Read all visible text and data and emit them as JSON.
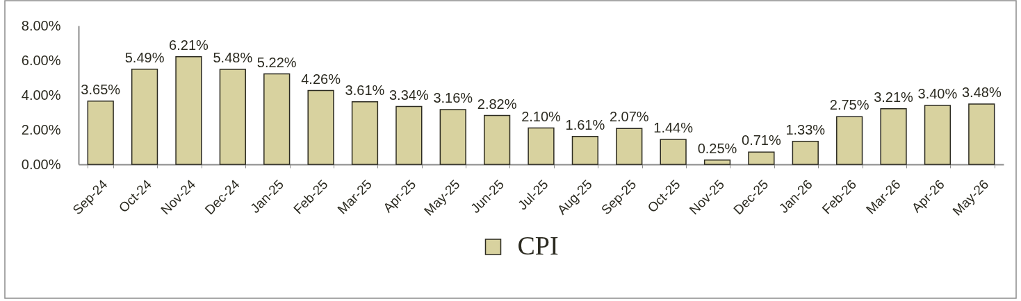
{
  "chart_data": {
    "type": "bar",
    "categories": [
      "Sep-24",
      "Oct-24",
      "Nov-24",
      "Dec-24",
      "Jan-25",
      "Feb-25",
      "Mar-25",
      "Apr-25",
      "May-25",
      "Jun-25",
      "Jul-25",
      "Aug-25",
      "Sep-25",
      "Oct-25",
      "Nov-25",
      "Dec-25",
      "Jan-26",
      "Feb-26",
      "Mar-26",
      "Apr-26",
      "May-26"
    ],
    "series": [
      {
        "name": "CPI",
        "color": "#d8d29f",
        "values": [
          3.65,
          5.49,
          6.21,
          5.48,
          5.22,
          4.26,
          3.61,
          3.34,
          3.16,
          2.82,
          2.1,
          1.61,
          2.07,
          1.44,
          0.25,
          0.71,
          1.33,
          2.75,
          3.21,
          3.4,
          3.48
        ],
        "value_labels": [
          "3.65%",
          "5.49%",
          "6.21%",
          "5.48%",
          "5.22%",
          "4.26%",
          "3.61%",
          "3.34%",
          "3.16%",
          "2.82%",
          "2.10%",
          "1.61%",
          "2.07%",
          "1.44%",
          "0.25%",
          "0.71%",
          "1.33%",
          "2.75%",
          "3.21%",
          "3.40%",
          "3.48%"
        ]
      }
    ],
    "ylim": [
      0,
      8
    ],
    "yticks": [
      {
        "value": 0,
        "label": "0.00%"
      },
      {
        "value": 2,
        "label": "2.00%"
      },
      {
        "value": 4,
        "label": "4.00%"
      },
      {
        "value": 6,
        "label": "6.00%"
      },
      {
        "value": 8,
        "label": "8.00%"
      }
    ],
    "grid": false,
    "legend": "bottom"
  }
}
